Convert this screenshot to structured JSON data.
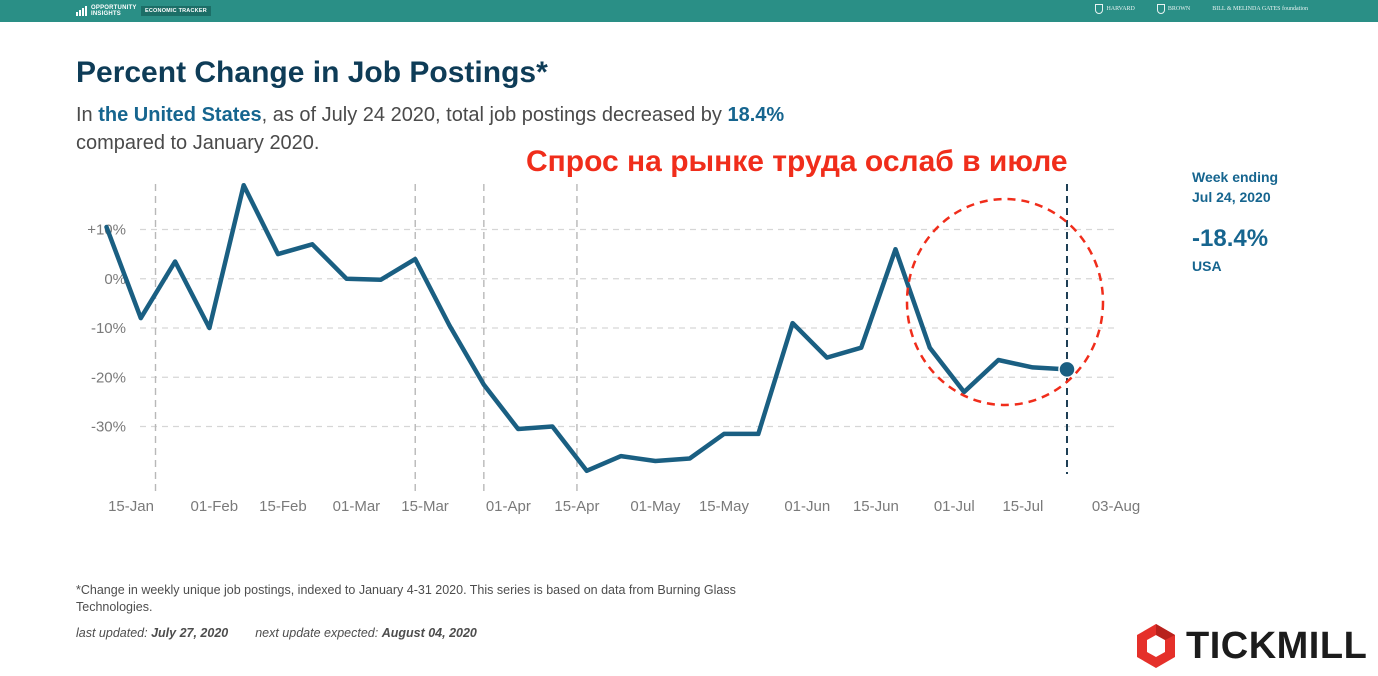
{
  "header": {
    "brand_name": "OPPORTUNITY INSIGHTS",
    "brand_tag": "ECONOMIC TRACKER",
    "partners": [
      "HARVARD",
      "BROWN",
      "BILL & MELINDA GATES foundation"
    ]
  },
  "title": "Percent Change in Job Postings*",
  "subtitle": {
    "prefix": "In ",
    "geo": "the United States",
    "middle": ", as of July 24 2020, total job postings decreased by ",
    "value": "18.4%",
    "suffix": "compared to January 2020."
  },
  "annotation": {
    "text": "Спрос на рынке труда ослаб в июле",
    "color": "#f02d1b"
  },
  "callout": {
    "label": "Week ending",
    "date": "Jul 24, 2020",
    "value": "-18.4%",
    "geo": "USA"
  },
  "footnote": "*Change in weekly unique job postings, indexed to January 4-31 2020. This series is based on data from Burning Glass Technologies.",
  "updated": {
    "last_label": "last updated:",
    "last_date": "July 27, 2020",
    "next_label": "next update expected:",
    "next_date": "August 04, 2020"
  },
  "logo": {
    "text": "TICKMILL",
    "icon": "tickmill-hexagon-icon"
  },
  "colors": {
    "line": "#1a5f82",
    "accent": "#16658f",
    "topbar": "#2a8f86",
    "annotation": "#f02d1b"
  },
  "chart_data": {
    "type": "line",
    "x_ticks": [
      "15-Jan",
      "01-Feb",
      "15-Feb",
      "01-Mar",
      "15-Mar",
      "01-Apr",
      "15-Apr",
      "01-May",
      "15-May",
      "01-Jun",
      "15-Jun",
      "01-Jul",
      "15-Jul",
      "03-Aug"
    ],
    "y_ticks": [
      10,
      0,
      -10,
      -20,
      -30
    ],
    "y_tick_labels": [
      "+10%",
      "0%",
      "-10%",
      "-20%",
      "-30%"
    ],
    "ylim": [
      -45,
      20
    ],
    "grid": "horizontal dashed",
    "event_lines": [
      "2020-01-20",
      "2020-03-13",
      "2020-03-27",
      "2020-04-15"
    ],
    "current_marker": "2020-07-24",
    "series": [
      {
        "x": [
          "2020-01-10",
          "2020-01-17",
          "2020-01-24",
          "2020-01-31",
          "2020-02-07",
          "2020-02-14",
          "2020-02-21",
          "2020-02-28",
          "2020-03-06",
          "2020-03-13",
          "2020-03-20",
          "2020-03-27",
          "2020-04-03",
          "2020-04-10",
          "2020-04-17",
          "2020-04-24",
          "2020-05-01",
          "2020-05-08",
          "2020-05-15",
          "2020-05-22",
          "2020-05-29",
          "2020-06-05",
          "2020-06-12",
          "2020-06-19",
          "2020-06-26",
          "2020-07-03",
          "2020-07-10",
          "2020-07-17",
          "2020-07-24"
        ],
        "values": [
          10.5,
          -8,
          3.5,
          -10,
          19,
          5,
          7,
          0,
          -0.2,
          4,
          -9.5,
          -21.5,
          -30.5,
          -30,
          -39,
          -36,
          -37,
          -36.5,
          -31.5,
          -31.5,
          -9,
          -16,
          -14,
          6,
          -14,
          -23,
          -16.5,
          -18,
          -18.4
        ]
      }
    ]
  }
}
